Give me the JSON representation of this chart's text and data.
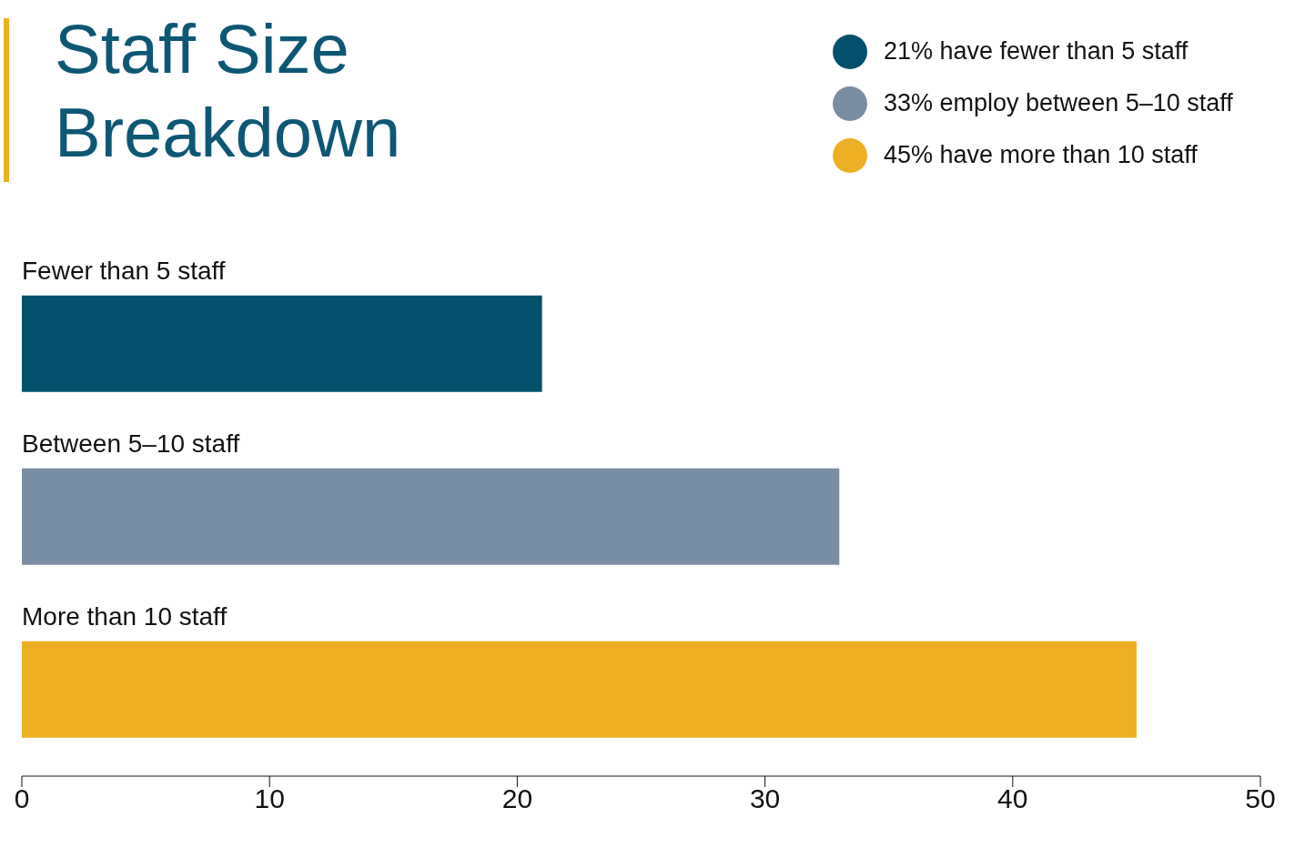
{
  "chart_data": {
    "type": "bar",
    "title": "Staff Size\nBreakdown",
    "orientation": "horizontal",
    "stacked": true,
    "categories": [
      "Fewer than 5 staff",
      "Between 5–10 staff",
      "More than 10 staff"
    ],
    "series": [
      {
        "name": "21% have fewer than 5 staff",
        "color": "#02506b",
        "values": [
          21,
          null,
          null
        ]
      },
      {
        "name": "33% employ between 5–10 staff",
        "color": "#7a8ea3",
        "values": [
          null,
          33,
          null
        ]
      },
      {
        "name": "45% have more than 10 staff",
        "color": "#ecaf23",
        "values": [
          null,
          null,
          45
        ]
      }
    ],
    "xlim": [
      0,
      50
    ],
    "xticks": [
      0,
      10,
      20,
      30,
      40,
      50
    ],
    "legend": "top right"
  }
}
